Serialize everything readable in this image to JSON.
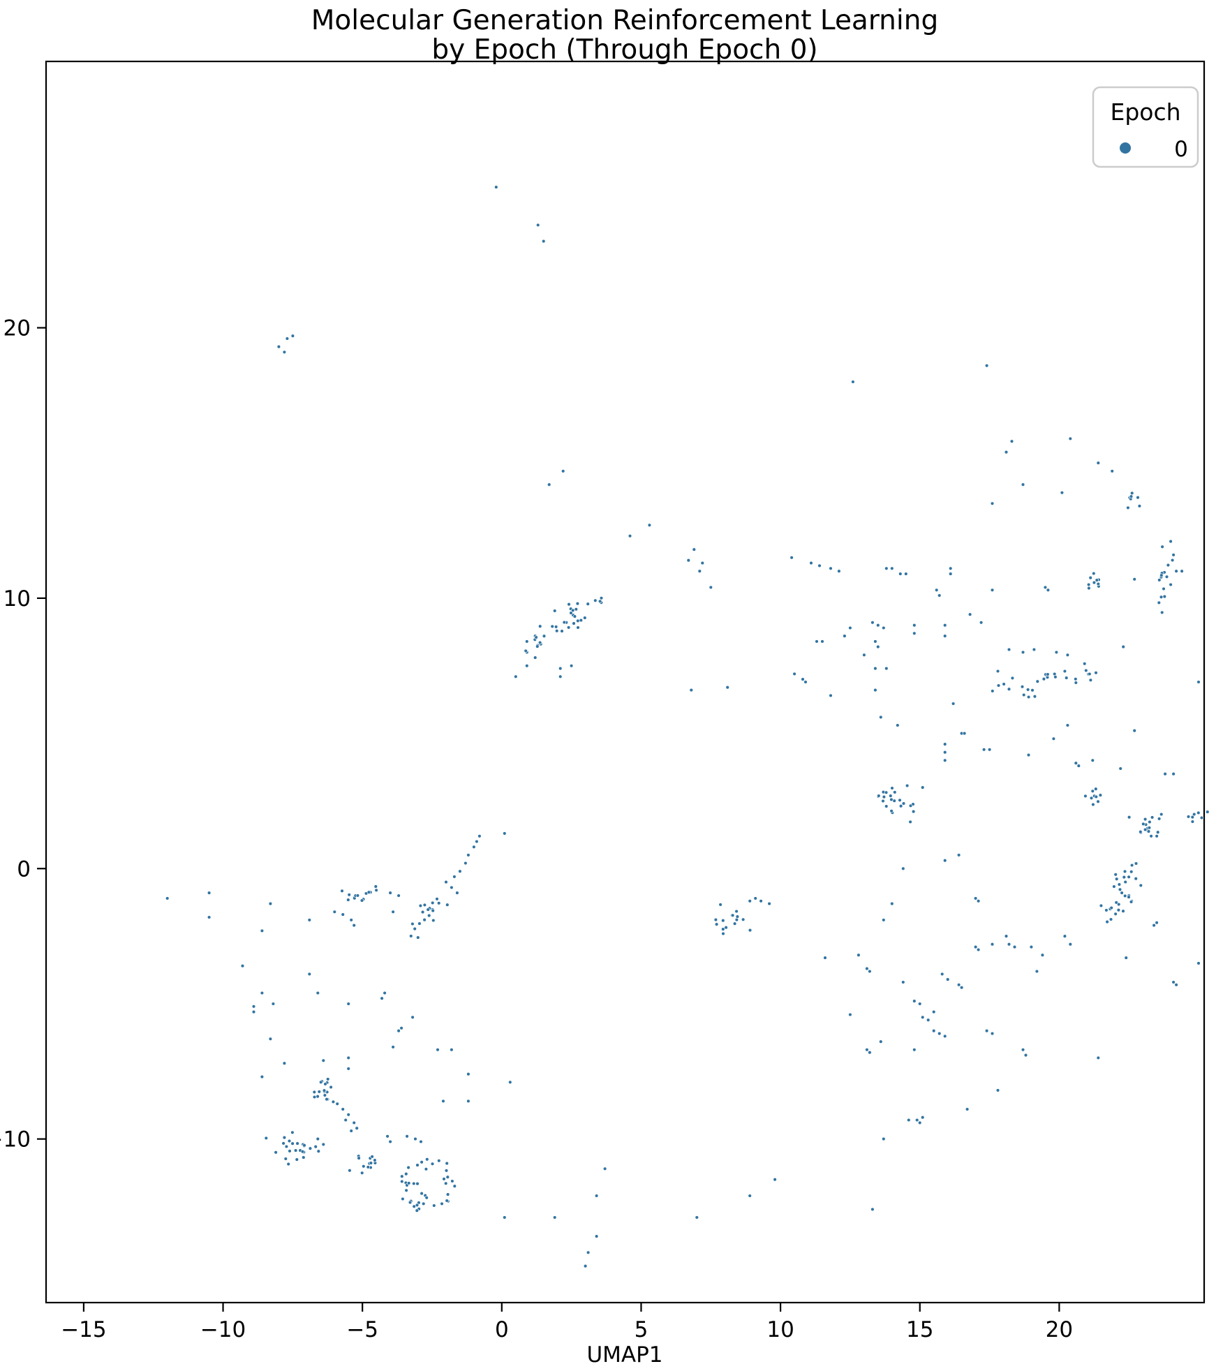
{
  "title": {
    "line1": "Molecular Generation Reinforcement Learning",
    "line2": "by Epoch (Through Epoch 0)"
  },
  "axes": {
    "xlabel": "UMAP1",
    "x_tick_labels": [
      "−15",
      "−10",
      "−5",
      "0",
      "5",
      "10",
      "15",
      "20"
    ],
    "y_tick_labels": [
      "−10",
      "0",
      "10",
      "20"
    ]
  },
  "legend": {
    "title": "Epoch",
    "entries": [
      {
        "label": "0",
        "color": "#3274a1"
      }
    ]
  },
  "colors": {
    "point": "#3274a1",
    "point_edge": "#ffffff",
    "spine": "#000000",
    "legend_border": "#cccccc",
    "background": "#ffffff"
  },
  "chart_data": {
    "type": "scatter",
    "title": "Molecular Generation Reinforcement Learning by Epoch (Through Epoch 0)",
    "xlabel": "UMAP1",
    "ylabel": "",
    "grid": false,
    "legend_position": "upper right",
    "series_name": "Epoch 0",
    "xlim": [
      -16.35,
      25.2
    ],
    "ylim": [
      -16.05,
      29.85
    ],
    "x_ticks": [
      -15,
      -10,
      -5,
      0,
      5,
      10,
      15,
      20
    ],
    "y_ticks": [
      -10,
      0,
      10,
      20
    ],
    "point_radius_px": 2.4,
    "points": [
      [
        -0.2,
        25.2
      ],
      [
        1.3,
        23.8
      ],
      [
        1.5,
        23.2
      ],
      [
        -7.5,
        19.7
      ],
      [
        -7.7,
        19.6
      ],
      [
        -8.0,
        19.3
      ],
      [
        -7.8,
        19.1
      ],
      [
        17.4,
        18.6
      ],
      [
        12.6,
        18.0
      ],
      [
        2.2,
        14.7
      ],
      [
        1.7,
        14.2
      ],
      [
        18.3,
        15.8
      ],
      [
        20.4,
        15.9
      ],
      [
        18.1,
        15.4
      ],
      [
        21.4,
        15.0
      ],
      [
        21.9,
        14.7
      ],
      [
        18.7,
        14.2
      ],
      [
        20.1,
        13.9
      ],
      [
        17.6,
        13.5
      ],
      [
        4.6,
        12.3
      ],
      [
        5.3,
        12.7
      ],
      [
        6.9,
        11.8
      ],
      [
        6.7,
        11.4
      ],
      [
        7.2,
        11.3
      ],
      [
        7.1,
        11.0
      ],
      [
        7.5,
        10.4
      ],
      [
        10.4,
        11.5
      ],
      [
        11.1,
        11.3
      ],
      [
        11.4,
        11.2
      ],
      [
        11.8,
        11.1
      ],
      [
        12.1,
        11.0
      ],
      [
        13.8,
        11.1
      ],
      [
        14.0,
        11.1
      ],
      [
        14.3,
        10.9
      ],
      [
        14.5,
        10.9
      ],
      [
        16.1,
        11.1
      ],
      [
        16.1,
        10.9
      ],
      [
        15.6,
        10.3
      ],
      [
        15.7,
        10.1
      ],
      [
        17.6,
        10.3
      ],
      [
        16.8,
        9.4
      ],
      [
        19.5,
        10.4
      ],
      [
        19.6,
        10.3
      ],
      [
        24.0,
        12.1
      ],
      [
        23.7,
        11.9
      ],
      [
        24.1,
        11.6
      ],
      [
        22.7,
        10.7
      ],
      [
        24.2,
        11.0
      ],
      [
        24.4,
        11.0
      ],
      [
        24.0,
        10.5
      ],
      [
        12.5,
        8.9
      ],
      [
        13.3,
        9.1
      ],
      [
        13.5,
        9.0
      ],
      [
        13.7,
        8.9
      ],
      [
        14.8,
        9.0
      ],
      [
        15.9,
        9.0
      ],
      [
        17.2,
        9.1
      ],
      [
        11.3,
        8.4
      ],
      [
        11.5,
        8.4
      ],
      [
        12.3,
        8.6
      ],
      [
        13.4,
        8.4
      ],
      [
        13.5,
        8.2
      ],
      [
        13.0,
        7.9
      ],
      [
        14.8,
        8.7
      ],
      [
        15.9,
        8.6
      ],
      [
        18.2,
        8.1
      ],
      [
        18.7,
        8.0
      ],
      [
        19.1,
        8.1
      ],
      [
        19.9,
        8.0
      ],
      [
        20.3,
        7.9
      ],
      [
        17.8,
        7.3
      ],
      [
        22.3,
        8.2
      ],
      [
        20.2,
        7.3
      ],
      [
        25.0,
        6.9
      ],
      [
        13.4,
        7.4
      ],
      [
        13.8,
        7.4
      ],
      [
        10.5,
        7.2
      ],
      [
        10.8,
        7.0
      ],
      [
        10.9,
        6.9
      ],
      [
        6.8,
        6.6
      ],
      [
        8.1,
        6.7
      ],
      [
        11.8,
        6.4
      ],
      [
        13.4,
        6.6
      ],
      [
        13.6,
        5.6
      ],
      [
        14.2,
        5.3
      ],
      [
        16.2,
        6.1
      ],
      [
        16.5,
        5.0
      ],
      [
        16.6,
        5.0
      ],
      [
        15.9,
        4.6
      ],
      [
        15.9,
        4.3
      ],
      [
        15.9,
        4.0
      ],
      [
        17.3,
        4.4
      ],
      [
        17.5,
        4.4
      ],
      [
        18.9,
        4.2
      ],
      [
        19.8,
        4.8
      ],
      [
        20.3,
        5.3
      ],
      [
        20.6,
        3.9
      ],
      [
        20.7,
        3.8
      ],
      [
        21.2,
        4.0
      ],
      [
        22.2,
        3.7
      ],
      [
        22.7,
        5.1
      ],
      [
        23.8,
        3.5
      ],
      [
        24.1,
        3.5
      ],
      [
        15.1,
        3.0
      ],
      [
        23.3,
        1.2
      ],
      [
        23.5,
        1.2
      ],
      [
        22.5,
        -1.0
      ],
      [
        22.6,
        -1.2
      ],
      [
        23.4,
        -2.1
      ],
      [
        23.5,
        -2.0
      ],
      [
        24.1,
        -4.2
      ],
      [
        24.2,
        -4.3
      ],
      [
        25.0,
        -3.5
      ],
      [
        9.1,
        -1.1
      ],
      [
        9.3,
        -1.2
      ],
      [
        9.6,
        -1.3
      ],
      [
        8.9,
        -1.2
      ],
      [
        12.8,
        -3.2
      ],
      [
        13.1,
        -3.7
      ],
      [
        13.2,
        -3.8
      ],
      [
        14.8,
        -4.9
      ],
      [
        15.0,
        -5.0
      ],
      [
        15.5,
        -5.3
      ],
      [
        15.8,
        -3.9
      ],
      [
        16.0,
        -4.1
      ],
      [
        16.4,
        -4.3
      ],
      [
        16.5,
        -4.4
      ],
      [
        17.0,
        -2.9
      ],
      [
        17.1,
        -3.0
      ],
      [
        17.6,
        -2.8
      ],
      [
        18.2,
        -2.8
      ],
      [
        18.4,
        -2.9
      ],
      [
        19.0,
        -2.9
      ],
      [
        19.4,
        -3.2
      ],
      [
        20.2,
        -2.5
      ],
      [
        20.4,
        -2.8
      ],
      [
        19.2,
        -3.8
      ],
      [
        22.4,
        -3.3
      ],
      [
        14.4,
        -4.2
      ],
      [
        12.5,
        -5.4
      ],
      [
        13.1,
        -6.7
      ],
      [
        13.2,
        -6.8
      ],
      [
        14.8,
        -6.7
      ],
      [
        15.1,
        -5.5
      ],
      [
        15.3,
        -5.6
      ],
      [
        13.6,
        -6.4
      ],
      [
        15.5,
        -6.0
      ],
      [
        15.7,
        -6.1
      ],
      [
        15.9,
        -6.2
      ],
      [
        17.4,
        -6.0
      ],
      [
        17.6,
        -6.1
      ],
      [
        18.7,
        -6.7
      ],
      [
        18.8,
        -6.9
      ],
      [
        17.8,
        -8.2
      ],
      [
        16.7,
        -8.9
      ],
      [
        21.4,
        -7.0
      ],
      [
        17.0,
        -1.1
      ],
      [
        17.1,
        -1.2
      ],
      [
        18.1,
        -2.5
      ],
      [
        15.9,
        0.3
      ],
      [
        16.4,
        0.5
      ],
      [
        14.4,
        0.0
      ],
      [
        14.0,
        -1.3
      ],
      [
        13.7,
        -1.9
      ],
      [
        11.6,
        -3.3
      ],
      [
        14.6,
        -9.3
      ],
      [
        14.9,
        -9.3
      ],
      [
        15.0,
        -9.4
      ],
      [
        15.1,
        -9.2
      ],
      [
        13.7,
        -10.0
      ],
      [
        9.8,
        -11.5
      ],
      [
        8.9,
        -12.1
      ],
      [
        13.3,
        -12.6
      ],
      [
        7.0,
        -12.9
      ],
      [
        3.7,
        -11.1
      ],
      [
        3.4,
        -12.1
      ],
      [
        0.1,
        -12.9
      ],
      [
        3.4,
        -13.6
      ],
      [
        3.1,
        -14.2
      ],
      [
        3.0,
        -14.7
      ],
      [
        1.9,
        -12.9
      ],
      [
        -12.0,
        -1.1
      ],
      [
        -10.5,
        -0.9
      ],
      [
        -10.5,
        -1.8
      ],
      [
        -8.3,
        -1.3
      ],
      [
        -8.6,
        -2.3
      ],
      [
        -6.9,
        -1.9
      ],
      [
        -9.3,
        -3.6
      ],
      [
        -8.6,
        -4.6
      ],
      [
        -8.2,
        -5.0
      ],
      [
        -8.9,
        -5.1
      ],
      [
        -8.9,
        -5.3
      ],
      [
        -6.9,
        -3.9
      ],
      [
        -6.6,
        -4.6
      ],
      [
        -5.5,
        -5.0
      ],
      [
        -4.3,
        -4.8
      ],
      [
        -4.2,
        -4.6
      ],
      [
        -8.3,
        -6.3
      ],
      [
        -7.8,
        -7.2
      ],
      [
        -8.6,
        -7.7
      ],
      [
        -6.4,
        -7.1
      ],
      [
        -5.5,
        -7.0
      ],
      [
        -5.5,
        -7.4
      ],
      [
        -3.9,
        -6.6
      ],
      [
        -3.2,
        -5.5
      ],
      [
        -3.7,
        -6.0
      ],
      [
        -3.6,
        -5.9
      ],
      [
        -2.3,
        -6.7
      ],
      [
        -1.8,
        -6.7
      ],
      [
        -1.2,
        -7.6
      ],
      [
        -1.2,
        -8.6
      ],
      [
        -2.1,
        -8.6
      ],
      [
        0.3,
        -7.9
      ],
      [
        -4.5,
        -0.8
      ],
      [
        -4.0,
        -0.9
      ],
      [
        -3.7,
        -1.0
      ],
      [
        -3.9,
        -1.6
      ],
      [
        -6.0,
        -1.6
      ],
      [
        -5.7,
        -1.7
      ],
      [
        -5.4,
        -1.9
      ],
      [
        -5.3,
        -2.1
      ],
      [
        -2.0,
        -0.5
      ],
      [
        -1.8,
        -0.7
      ],
      [
        -1.6,
        -0.9
      ],
      [
        -1.7,
        -0.3
      ],
      [
        -1.5,
        -0.1
      ],
      [
        -1.3,
        0.2
      ],
      [
        -1.2,
        0.5
      ],
      [
        -1.0,
        0.8
      ],
      [
        -0.9,
        1.0
      ],
      [
        -0.8,
        1.2
      ],
      [
        0.1,
        1.3
      ],
      [
        -5.9,
        -8.7
      ],
      [
        -5.7,
        -8.9
      ],
      [
        -5.5,
        -9.1
      ],
      [
        -5.3,
        -9.4
      ],
      [
        -5.6,
        -9.3
      ],
      [
        -5.4,
        -9.7
      ],
      [
        -5.2,
        -9.6
      ],
      [
        -6.6,
        -10.0
      ],
      [
        -6.4,
        -10.2
      ],
      [
        -4.1,
        -9.9
      ],
      [
        -4.0,
        -10.1
      ],
      [
        -3.4,
        -9.9
      ],
      [
        -3.1,
        -10.0
      ],
      [
        -2.9,
        -10.1
      ],
      [
        0.5,
        7.1
      ],
      [
        0.9,
        7.5
      ],
      [
        1.2,
        7.8
      ],
      [
        0.9,
        8.0
      ],
      [
        0.9,
        8.4
      ],
      [
        1.2,
        8.6
      ],
      [
        1.4,
        8.3
      ],
      [
        2.1,
        7.1
      ],
      [
        2.5,
        7.5
      ],
      [
        2.1,
        7.4
      ]
    ],
    "clusters": [
      {
        "shape": "blob",
        "cx": -5.1,
        "cy": -0.95,
        "sx": 0.32,
        "sy": 0.22,
        "n": 13
      },
      {
        "shape": "diag",
        "x1": -3.4,
        "y1": -2.4,
        "x2": -2.2,
        "y2": -1.1,
        "sd": 0.18,
        "n": 20
      },
      {
        "shape": "blob",
        "cx": -6.45,
        "cy": -8.15,
        "sx": 0.3,
        "sy": 0.28,
        "n": 17
      },
      {
        "shape": "blob",
        "cx": -7.3,
        "cy": -10.35,
        "sx": 0.4,
        "sy": 0.35,
        "n": 24
      },
      {
        "shape": "blob",
        "cx": -4.95,
        "cy": -10.85,
        "sx": 0.32,
        "sy": 0.22,
        "n": 13
      },
      {
        "shape": "ring",
        "cx": -2.62,
        "cy": -11.65,
        "rmin": 0.45,
        "rmax": 1.05,
        "n": 40
      },
      {
        "shape": "diag",
        "x1": 0.9,
        "y1": 8.0,
        "x2": 3.6,
        "y2": 10.1,
        "sd": 0.22,
        "n": 34
      },
      {
        "shape": "blob",
        "cx": 14.2,
        "cy": 2.5,
        "sx": 0.35,
        "sy": 0.32,
        "n": 22
      },
      {
        "shape": "blob",
        "cx": 21.2,
        "cy": 2.65,
        "sx": 0.28,
        "sy": 0.18,
        "n": 9
      },
      {
        "shape": "blob",
        "cx": 23.15,
        "cy": 1.7,
        "sx": 0.22,
        "sy": 0.3,
        "n": 16
      },
      {
        "shape": "blob",
        "cx": 22.4,
        "cy": -0.45,
        "sx": 0.28,
        "sy": 0.38,
        "n": 18
      },
      {
        "shape": "blob",
        "cx": 21.85,
        "cy": -1.5,
        "sx": 0.28,
        "sy": 0.18,
        "n": 11
      },
      {
        "shape": "blob",
        "cx": 8.2,
        "cy": -1.9,
        "sx": 0.28,
        "sy": 0.3,
        "n": 15
      },
      {
        "shape": "blob",
        "cx": 18.4,
        "cy": 6.6,
        "sx": 0.45,
        "sy": 0.28,
        "n": 12
      },
      {
        "shape": "blob",
        "cx": 19.6,
        "cy": 7.15,
        "sx": 0.28,
        "sy": 0.22,
        "n": 8
      },
      {
        "shape": "blob",
        "cx": 20.9,
        "cy": 7.1,
        "sx": 0.3,
        "sy": 0.25,
        "n": 8
      },
      {
        "shape": "diag",
        "x1": 23.7,
        "y1": 9.4,
        "x2": 23.9,
        "y2": 12.3,
        "sd": 0.12,
        "n": 14
      },
      {
        "shape": "blob",
        "cx": 24.95,
        "cy": 2.0,
        "sx": 0.22,
        "sy": 0.2,
        "n": 7
      },
      {
        "shape": "blob",
        "cx": 21.3,
        "cy": 10.6,
        "sx": 0.22,
        "sy": 0.15,
        "n": 9
      },
      {
        "shape": "blob",
        "cx": 22.65,
        "cy": 13.65,
        "sx": 0.18,
        "sy": 0.2,
        "n": 7
      }
    ]
  }
}
